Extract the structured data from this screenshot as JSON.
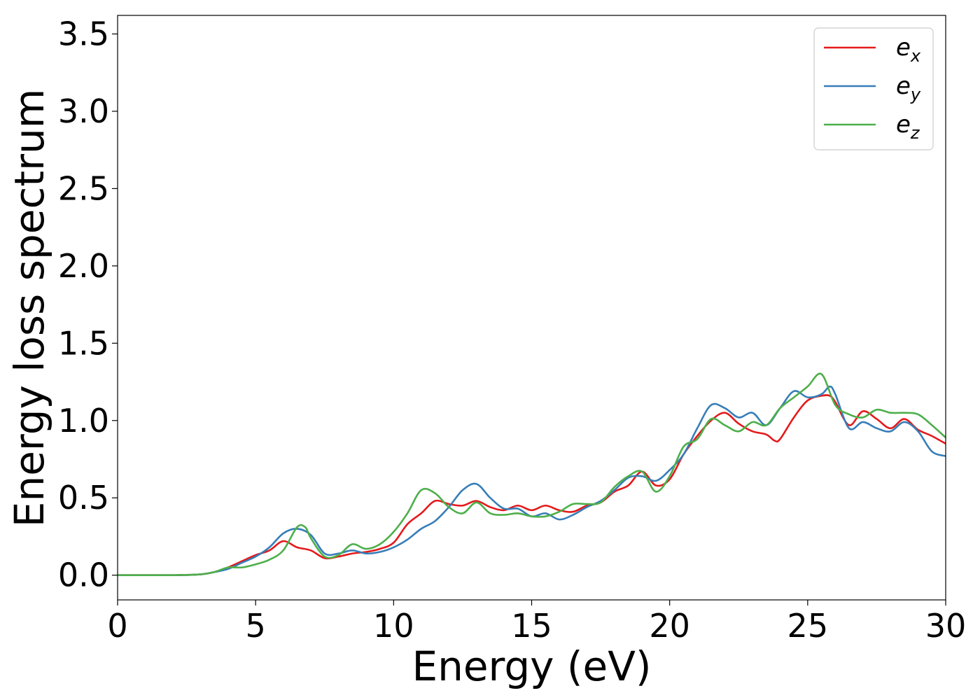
{
  "chart_data": {
    "type": "line",
    "xlabel": "Energy (eV)",
    "ylabel": "Energy loss spectrum",
    "xlim": [
      0,
      30
    ],
    "ylim": [
      -0.16,
      3.62
    ],
    "x_ticks": [
      "0",
      "5",
      "10",
      "15",
      "20",
      "25",
      "30"
    ],
    "y_ticks": [
      "0.0",
      "0.5",
      "1.0",
      "1.5",
      "2.0",
      "2.5",
      "3.0",
      "3.5"
    ],
    "grid": false,
    "legend_position": "top-right",
    "series": [
      {
        "name": "e",
        "subscript": "x",
        "color": "#e41a1c",
        "points": [
          [
            0,
            0
          ],
          [
            1,
            0
          ],
          [
            2,
            0
          ],
          [
            3,
            0.005
          ],
          [
            3.5,
            0.02
          ],
          [
            4,
            0.05
          ],
          [
            4.5,
            0.09
          ],
          [
            5,
            0.13
          ],
          [
            5.5,
            0.16
          ],
          [
            6,
            0.22
          ],
          [
            6.5,
            0.18
          ],
          [
            7,
            0.16
          ],
          [
            7.5,
            0.11
          ],
          [
            8,
            0.12
          ],
          [
            8.5,
            0.14
          ],
          [
            9,
            0.15
          ],
          [
            9.5,
            0.17
          ],
          [
            10,
            0.21
          ],
          [
            10.5,
            0.33
          ],
          [
            11,
            0.4
          ],
          [
            11.5,
            0.48
          ],
          [
            12,
            0.46
          ],
          [
            12.5,
            0.45
          ],
          [
            13,
            0.48
          ],
          [
            13.5,
            0.44
          ],
          [
            14,
            0.42
          ],
          [
            14.5,
            0.45
          ],
          [
            15,
            0.42
          ],
          [
            15.5,
            0.45
          ],
          [
            16,
            0.42
          ],
          [
            16.5,
            0.41
          ],
          [
            17,
            0.45
          ],
          [
            17.5,
            0.47
          ],
          [
            18,
            0.54
          ],
          [
            18.5,
            0.58
          ],
          [
            19,
            0.67
          ],
          [
            19.5,
            0.58
          ],
          [
            20,
            0.62
          ],
          [
            20.5,
            0.78
          ],
          [
            21,
            0.9
          ],
          [
            21.5,
            1.0
          ],
          [
            22,
            1.05
          ],
          [
            22.5,
            0.98
          ],
          [
            23,
            0.93
          ],
          [
            23.5,
            0.91
          ],
          [
            23.8,
            0.87
          ],
          [
            24,
            0.88
          ],
          [
            24.5,
            1.02
          ],
          [
            25,
            1.13
          ],
          [
            25.5,
            1.16
          ],
          [
            25.8,
            1.16
          ],
          [
            26,
            1.12
          ],
          [
            26.5,
            0.97
          ],
          [
            27,
            1.06
          ],
          [
            27.5,
            1.01
          ],
          [
            28,
            0.95
          ],
          [
            28.5,
            1.01
          ],
          [
            29,
            0.94
          ],
          [
            29.5,
            0.9
          ],
          [
            30,
            0.85
          ]
        ]
      },
      {
        "name": "e",
        "subscript": "y",
        "color": "#377eb8",
        "points": [
          [
            0,
            0
          ],
          [
            1,
            0
          ],
          [
            2,
            0
          ],
          [
            3,
            0.005
          ],
          [
            3.5,
            0.02
          ],
          [
            4,
            0.04
          ],
          [
            4.5,
            0.08
          ],
          [
            5,
            0.12
          ],
          [
            5.5,
            0.18
          ],
          [
            6,
            0.27
          ],
          [
            6.5,
            0.3
          ],
          [
            7,
            0.26
          ],
          [
            7.5,
            0.14
          ],
          [
            8,
            0.14
          ],
          [
            8.5,
            0.16
          ],
          [
            9,
            0.14
          ],
          [
            9.5,
            0.15
          ],
          [
            10,
            0.18
          ],
          [
            10.5,
            0.23
          ],
          [
            11,
            0.3
          ],
          [
            11.5,
            0.35
          ],
          [
            12,
            0.44
          ],
          [
            12.5,
            0.55
          ],
          [
            13,
            0.59
          ],
          [
            13.5,
            0.5
          ],
          [
            14,
            0.43
          ],
          [
            14.5,
            0.43
          ],
          [
            15,
            0.38
          ],
          [
            15.5,
            0.4
          ],
          [
            16,
            0.36
          ],
          [
            16.5,
            0.39
          ],
          [
            17,
            0.44
          ],
          [
            17.5,
            0.48
          ],
          [
            18,
            0.55
          ],
          [
            18.5,
            0.63
          ],
          [
            19,
            0.64
          ],
          [
            19.5,
            0.61
          ],
          [
            20,
            0.68
          ],
          [
            20.5,
            0.78
          ],
          [
            21,
            0.95
          ],
          [
            21.5,
            1.1
          ],
          [
            22,
            1.08
          ],
          [
            22.5,
            1.02
          ],
          [
            23,
            1.05
          ],
          [
            23.5,
            0.97
          ],
          [
            24,
            1.08
          ],
          [
            24.5,
            1.19
          ],
          [
            25,
            1.15
          ],
          [
            25.5,
            1.17
          ],
          [
            25.8,
            1.22
          ],
          [
            26,
            1.17
          ],
          [
            26.5,
            0.95
          ],
          [
            27,
            0.99
          ],
          [
            27.5,
            0.95
          ],
          [
            28,
            0.93
          ],
          [
            28.5,
            0.99
          ],
          [
            29,
            0.93
          ],
          [
            29.5,
            0.8
          ],
          [
            30,
            0.77
          ]
        ]
      },
      {
        "name": "e",
        "subscript": "z",
        "color": "#4daf4a",
        "points": [
          [
            0,
            0
          ],
          [
            1,
            0
          ],
          [
            2,
            0
          ],
          [
            3,
            0.005
          ],
          [
            3.5,
            0.02
          ],
          [
            4,
            0.05
          ],
          [
            4.5,
            0.05
          ],
          [
            5,
            0.07
          ],
          [
            5.5,
            0.1
          ],
          [
            6,
            0.16
          ],
          [
            6.5,
            0.31
          ],
          [
            6.8,
            0.31
          ],
          [
            7,
            0.24
          ],
          [
            7.5,
            0.12
          ],
          [
            8,
            0.13
          ],
          [
            8.5,
            0.2
          ],
          [
            9,
            0.17
          ],
          [
            9.5,
            0.2
          ],
          [
            10,
            0.28
          ],
          [
            10.5,
            0.4
          ],
          [
            11,
            0.55
          ],
          [
            11.5,
            0.53
          ],
          [
            12,
            0.44
          ],
          [
            12.5,
            0.4
          ],
          [
            13,
            0.47
          ],
          [
            13.5,
            0.4
          ],
          [
            14,
            0.39
          ],
          [
            14.5,
            0.4
          ],
          [
            15,
            0.38
          ],
          [
            15.5,
            0.38
          ],
          [
            16,
            0.41
          ],
          [
            16.5,
            0.46
          ],
          [
            17,
            0.46
          ],
          [
            17.5,
            0.47
          ],
          [
            18,
            0.57
          ],
          [
            18.5,
            0.64
          ],
          [
            19,
            0.67
          ],
          [
            19.5,
            0.54
          ],
          [
            20,
            0.64
          ],
          [
            20.5,
            0.83
          ],
          [
            21,
            0.88
          ],
          [
            21.5,
            1.01
          ],
          [
            22,
            0.97
          ],
          [
            22.5,
            0.93
          ],
          [
            23,
            0.99
          ],
          [
            23.5,
            0.97
          ],
          [
            24,
            1.08
          ],
          [
            24.5,
            1.15
          ],
          [
            25,
            1.22
          ],
          [
            25.5,
            1.3
          ],
          [
            26,
            1.1
          ],
          [
            26.5,
            1.04
          ],
          [
            27,
            1.02
          ],
          [
            27.5,
            1.07
          ],
          [
            28,
            1.05
          ],
          [
            28.5,
            1.05
          ],
          [
            29,
            1.04
          ],
          [
            29.5,
            0.97
          ],
          [
            30,
            0.89
          ]
        ]
      }
    ]
  }
}
